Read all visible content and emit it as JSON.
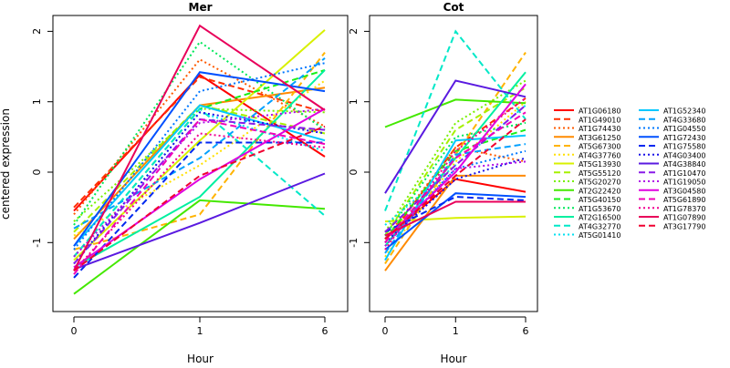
{
  "chart_data": {
    "type": "line",
    "ylabel": "centered expression",
    "xlabel": "Hour",
    "x": [
      "0",
      "1",
      "6"
    ],
    "ylim": [
      -1.9,
      2.2
    ],
    "yticks": [
      -1,
      0,
      1,
      2
    ],
    "legend_position": "right",
    "panels": [
      {
        "title": "Mer",
        "series": [
          {
            "name": "AT1G06180",
            "color": "#ff0000",
            "dash": "solid",
            "values": [
              -0.55,
              1.38,
              0.22
            ]
          },
          {
            "name": "AT1G49010",
            "color": "#ff2e00",
            "dash": "dashed",
            "values": [
              -0.5,
              1.35,
              0.85
            ]
          },
          {
            "name": "AT1G74430",
            "color": "#ff5a00",
            "dash": "dotted",
            "values": [
              -0.6,
              1.6,
              0.65
            ]
          },
          {
            "name": "AT3G61250",
            "color": "#ff8a00",
            "dash": "solid",
            "values": [
              -0.95,
              0.95,
              1.2
            ]
          },
          {
            "name": "AT5G67300",
            "color": "#ffb300",
            "dash": "dashed",
            "values": [
              -1.1,
              -0.6,
              1.7
            ]
          },
          {
            "name": "AT4G37760",
            "color": "#ffe000",
            "dash": "dotted",
            "values": [
              -0.9,
              0.1,
              1.3
            ]
          },
          {
            "name": "AT5G13930",
            "color": "#d8f000",
            "dash": "solid",
            "values": [
              -1.25,
              0.45,
              2.02
            ]
          },
          {
            "name": "AT5G55120",
            "color": "#a6f000",
            "dash": "dashed",
            "values": [
              -0.85,
              0.95,
              0.55
            ]
          },
          {
            "name": "AT5G20270",
            "color": "#78f000",
            "dash": "dotted",
            "values": [
              -0.7,
              0.9,
              0.85
            ]
          },
          {
            "name": "AT2G22420",
            "color": "#44e800",
            "dash": "solid",
            "values": [
              -1.73,
              -0.4,
              -0.52
            ]
          },
          {
            "name": "AT5G40150",
            "color": "#18f018",
            "dash": "dashed",
            "values": [
              -1.2,
              0.9,
              1.45
            ]
          },
          {
            "name": "AT1G53670",
            "color": "#00e85a",
            "dash": "dotted",
            "values": [
              -0.75,
              1.85,
              0.6
            ]
          },
          {
            "name": "AT2G16500",
            "color": "#00f0a0",
            "dash": "solid",
            "values": [
              -1.35,
              -0.35,
              1.45
            ]
          },
          {
            "name": "AT4G32770",
            "color": "#00e8c8",
            "dash": "dashed",
            "values": [
              -1.2,
              0.9,
              -0.62
            ]
          },
          {
            "name": "AT5G01410",
            "color": "#00e0f0",
            "dash": "dotted",
            "values": [
              -1.3,
              0.85,
              0.3
            ]
          },
          {
            "name": "AT1G52340",
            "color": "#00c8ff",
            "dash": "solid",
            "values": [
              -1.05,
              0.95,
              0.45
            ]
          },
          {
            "name": "AT4G33680",
            "color": "#00a0ff",
            "dash": "dashed",
            "values": [
              -0.8,
              0.2,
              1.62
            ]
          },
          {
            "name": "AT1G04550",
            "color": "#0078ff",
            "dash": "dotted",
            "values": [
              -1.1,
              1.15,
              1.55
            ]
          },
          {
            "name": "AT1G72430",
            "color": "#0050ff",
            "dash": "solid",
            "values": [
              -1.05,
              1.42,
              1.15
            ]
          },
          {
            "name": "AT1G75580",
            "color": "#0028f0",
            "dash": "dashed",
            "values": [
              -1.5,
              0.42,
              0.42
            ]
          },
          {
            "name": "AT4G03400",
            "color": "#1a10e8",
            "dash": "dotted",
            "values": [
              -1.3,
              0.85,
              0.55
            ]
          },
          {
            "name": "AT4G38840",
            "color": "#5a1ae0",
            "dash": "solid",
            "values": [
              -1.38,
              -0.72,
              -0.02
            ]
          },
          {
            "name": "AT1G10470",
            "color": "#8a1ae8",
            "dash": "dashed",
            "values": [
              -1.3,
              0.75,
              0.6
            ]
          },
          {
            "name": "AT1G19050",
            "color": "#b010e8",
            "dash": "dotted",
            "values": [
              -1.2,
              0.7,
              0.9
            ]
          },
          {
            "name": "AT3G04580",
            "color": "#e000e0",
            "dash": "solid",
            "values": [
              -1.35,
              -0.1,
              0.9
            ]
          },
          {
            "name": "AT5G61890",
            "color": "#f000b8",
            "dash": "dashed",
            "values": [
              -1.45,
              0.75,
              0.4
            ]
          },
          {
            "name": "AT1G78370",
            "color": "#f00090",
            "dash": "dotted",
            "values": [
              -1.4,
              0.55,
              0.35
            ]
          },
          {
            "name": "AT1G07890",
            "color": "#e8005a",
            "dash": "solid",
            "values": [
              -1.4,
              2.08,
              0.88
            ]
          },
          {
            "name": "AT3G17790",
            "color": "#f00030",
            "dash": "dashed",
            "values": [
              -1.4,
              -0.05,
              0.65
            ]
          }
        ]
      },
      {
        "title": "Cot",
        "series": [
          {
            "name": "AT1G06180",
            "color": "#ff0000",
            "dash": "solid",
            "values": [
              -0.95,
              -0.1,
              -0.28
            ]
          },
          {
            "name": "AT1G49010",
            "color": "#ff2e00",
            "dash": "dashed",
            "values": [
              -1.0,
              0.35,
              1.05
            ]
          },
          {
            "name": "AT1G74430",
            "color": "#ff5a00",
            "dash": "dotted",
            "values": [
              -0.95,
              0.35,
              0.15
            ]
          },
          {
            "name": "AT3G61250",
            "color": "#ff8a00",
            "dash": "solid",
            "values": [
              -1.4,
              -0.05,
              -0.05
            ]
          },
          {
            "name": "AT5G67300",
            "color": "#ffb300",
            "dash": "dashed",
            "values": [
              -1.3,
              0.25,
              1.7
            ]
          },
          {
            "name": "AT4G37760",
            "color": "#ffe000",
            "dash": "dotted",
            "values": [
              -1.2,
              0.15,
              1.0
            ]
          },
          {
            "name": "AT5G13930",
            "color": "#d8f000",
            "dash": "solid",
            "values": [
              -0.7,
              -0.65,
              -0.63
            ]
          },
          {
            "name": "AT5G55120",
            "color": "#a6f000",
            "dash": "dashed",
            "values": [
              -0.9,
              0.6,
              1.2
            ]
          },
          {
            "name": "AT5G20270",
            "color": "#78f000",
            "dash": "dotted",
            "values": [
              -0.85,
              0.7,
              1.3
            ]
          },
          {
            "name": "AT2G22420",
            "color": "#44e800",
            "dash": "solid",
            "values": [
              0.64,
              1.03,
              0.98
            ]
          },
          {
            "name": "AT5G40150",
            "color": "#18f018",
            "dash": "dashed",
            "values": [
              -0.95,
              0.3,
              0.6
            ]
          },
          {
            "name": "AT1G53670",
            "color": "#00e85a",
            "dash": "dotted",
            "values": [
              -0.9,
              0.5,
              0.7
            ]
          },
          {
            "name": "AT2G16500",
            "color": "#00f0a0",
            "dash": "solid",
            "values": [
              -1.05,
              0.2,
              1.42
            ]
          },
          {
            "name": "AT4G32770",
            "color": "#00e8c8",
            "dash": "dashed",
            "values": [
              -0.55,
              2.0,
              0.75
            ]
          },
          {
            "name": "AT5G01410",
            "color": "#00e0f0",
            "dash": "dotted",
            "values": [
              -0.75,
              0.1,
              0.95
            ]
          },
          {
            "name": "AT1G52340",
            "color": "#00c8ff",
            "dash": "solid",
            "values": [
              -1.25,
              0.45,
              0.52
            ]
          },
          {
            "name": "AT4G33680",
            "color": "#00a0ff",
            "dash": "dashed",
            "values": [
              -1.15,
              0.25,
              0.4
            ]
          },
          {
            "name": "AT1G04550",
            "color": "#0078ff",
            "dash": "dotted",
            "values": [
              -1.0,
              0.05,
              0.3
            ]
          },
          {
            "name": "AT1G72430",
            "color": "#0050ff",
            "dash": "solid",
            "values": [
              -1.1,
              -0.3,
              -0.35
            ]
          },
          {
            "name": "AT1G75580",
            "color": "#0028f0",
            "dash": "dashed",
            "values": [
              -0.85,
              -0.35,
              -0.4
            ]
          },
          {
            "name": "AT4G03400",
            "color": "#1a10e8",
            "dash": "dotted",
            "values": [
              -1.0,
              -0.1,
              0.2
            ]
          },
          {
            "name": "AT4G38840",
            "color": "#5a1ae0",
            "dash": "solid",
            "values": [
              -0.3,
              1.3,
              1.07
            ]
          },
          {
            "name": "AT1G10470",
            "color": "#8a1ae8",
            "dash": "dashed",
            "values": [
              -0.85,
              0.1,
              0.95
            ]
          },
          {
            "name": "AT1G19050",
            "color": "#b010e8",
            "dash": "dotted",
            "values": [
              -1.05,
              0.05,
              0.15
            ]
          },
          {
            "name": "AT3G04580",
            "color": "#e000e0",
            "dash": "solid",
            "values": [
              -0.95,
              0.0,
              1.25
            ]
          },
          {
            "name": "AT5G61890",
            "color": "#f000b8",
            "dash": "dashed",
            "values": [
              -1.0,
              0.2,
              0.85
            ]
          },
          {
            "name": "AT1G78370",
            "color": "#f00090",
            "dash": "dotted",
            "values": [
              -1.1,
              0.3,
              1.05
            ]
          },
          {
            "name": "AT1G07890",
            "color": "#e8005a",
            "dash": "solid",
            "values": [
              -0.9,
              -0.42,
              -0.42
            ]
          },
          {
            "name": "AT3G17790",
            "color": "#f00030",
            "dash": "dashed",
            "values": [
              -0.95,
              -0.05,
              0.75
            ]
          }
        ]
      }
    ]
  }
}
